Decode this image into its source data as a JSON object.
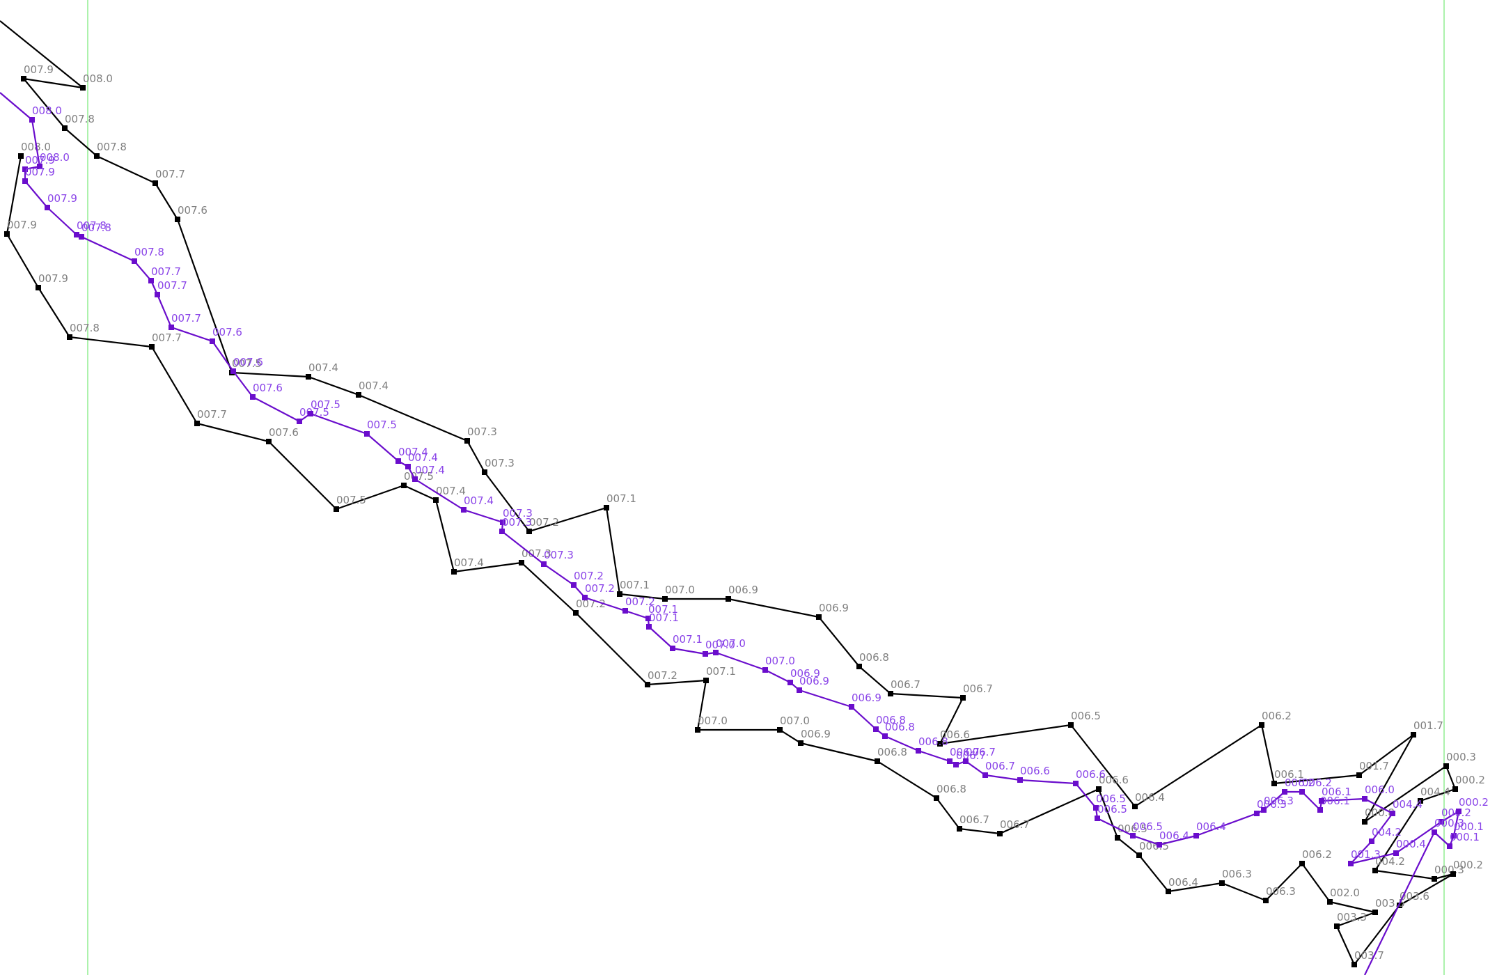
{
  "chart_data": {
    "type": "line",
    "title": "",
    "xlabel": "",
    "ylabel": "",
    "grid": false,
    "legend": "none",
    "colors": {
      "series_black": "#000000",
      "series_purple": "#6a0dcc",
      "label_black": "#808080",
      "label_purple": "#8a44e8",
      "guide": "#90ee90"
    },
    "guides": [
      "guide-left",
      "guide-right"
    ],
    "series": [
      {
        "key": "black",
        "points": [
          [
            0,
            30,
            ""
          ],
          [
            119,
            126,
            "008.0"
          ],
          [
            34,
            113,
            "007.9"
          ],
          [
            93,
            184,
            "007.8"
          ],
          [
            139,
            224,
            "007.8"
          ],
          [
            223,
            263,
            "007.7"
          ],
          [
            255,
            315,
            "007.6"
          ],
          [
            333,
            535,
            "007.5"
          ],
          [
            443,
            541,
            "007.4"
          ],
          [
            515,
            567,
            "007.4"
          ],
          [
            671,
            633,
            "007.3"
          ],
          [
            696,
            678,
            "007.3"
          ],
          [
            760,
            763,
            "007.2"
          ],
          [
            871,
            729,
            "007.1"
          ],
          [
            890,
            853,
            "007.1"
          ],
          [
            955,
            860,
            "007.0"
          ],
          [
            1046,
            860,
            "006.9"
          ],
          [
            1176,
            886,
            "006.9"
          ],
          [
            1234,
            957,
            "006.8"
          ],
          [
            1279,
            996,
            "006.7"
          ],
          [
            1383,
            1002,
            "006.7"
          ],
          [
            1350,
            1068,
            "006.6"
          ],
          [
            1538,
            1041,
            "006.5"
          ],
          [
            1630,
            1158,
            "006.4"
          ],
          [
            1812,
            1041,
            "006.2"
          ],
          [
            1830,
            1125,
            "006.1"
          ],
          [
            1952,
            1113,
            "001.7"
          ],
          [
            2030,
            1055,
            "001.7"
          ],
          [
            1960,
            1180,
            "000.8"
          ],
          [
            2077,
            1100,
            "000.3"
          ],
          [
            2090,
            1133,
            "000.2"
          ],
          [
            2040,
            1150,
            "004.4"
          ],
          [
            1975,
            1250,
            "004.2"
          ],
          [
            2060,
            1262,
            "000.3"
          ],
          [
            2087,
            1255,
            "000.2"
          ],
          [
            2010,
            1300,
            "003.6"
          ],
          [
            1945,
            1385,
            "003.7"
          ],
          [
            1920,
            1330,
            "003.3"
          ],
          [
            1975,
            1310,
            "003.5"
          ],
          [
            1910,
            1295,
            "002.0"
          ],
          [
            1870,
            1240,
            "006.2"
          ],
          [
            1818,
            1293,
            "006.3"
          ],
          [
            1755,
            1268,
            "006.3"
          ],
          [
            1678,
            1280,
            "006.4"
          ],
          [
            1636,
            1228,
            "006.5"
          ],
          [
            1605,
            1203,
            "006.5"
          ],
          [
            1578,
            1133,
            "006.6"
          ],
          [
            1436,
            1197,
            "006.7"
          ],
          [
            1378,
            1190,
            "006.7"
          ],
          [
            1345,
            1146,
            "006.8"
          ],
          [
            1260,
            1093,
            "006.8"
          ],
          [
            1150,
            1067,
            "006.9"
          ],
          [
            1120,
            1048,
            "007.0"
          ],
          [
            1002,
            1048,
            "007.0"
          ],
          [
            1014,
            977,
            "007.1"
          ],
          [
            930,
            983,
            "007.2"
          ],
          [
            827,
            880,
            "007.2"
          ],
          [
            749,
            808,
            "007.3"
          ],
          [
            652,
            821,
            "007.4"
          ],
          [
            626,
            718,
            "007.4"
          ],
          [
            580,
            697,
            "007.5"
          ],
          [
            483,
            731,
            "007.5"
          ],
          [
            386,
            634,
            "007.6"
          ],
          [
            283,
            608,
            "007.7"
          ],
          [
            218,
            498,
            "007.7"
          ],
          [
            100,
            484,
            "007.8"
          ],
          [
            55,
            413,
            "007.9"
          ],
          [
            10,
            336,
            "007.9"
          ],
          [
            30,
            224,
            "008.0"
          ]
        ]
      },
      {
        "key": "purple",
        "points": [
          [
            0,
            133,
            "008.0"
          ],
          [
            46,
            172,
            "008.0"
          ],
          [
            57,
            239,
            "008.0"
          ],
          [
            36,
            243,
            "007.9"
          ],
          [
            36,
            260,
            "007.9"
          ],
          [
            68,
            298,
            "007.9"
          ],
          [
            110,
            337,
            "007.8"
          ],
          [
            117,
            340,
            "007.8"
          ],
          [
            193,
            375,
            "007.8"
          ],
          [
            217,
            403,
            "007.7"
          ],
          [
            226,
            423,
            "007.7"
          ],
          [
            246,
            470,
            "007.7"
          ],
          [
            305,
            490,
            "007.6"
          ],
          [
            335,
            533,
            "007.6"
          ],
          [
            363,
            570,
            "007.6"
          ],
          [
            430,
            605,
            "007.5"
          ],
          [
            446,
            594,
            "007.5"
          ],
          [
            527,
            623,
            "007.5"
          ],
          [
            572,
            662,
            "007.4"
          ],
          [
            586,
            670,
            "007.4"
          ],
          [
            596,
            688,
            "007.4"
          ],
          [
            666,
            732,
            "007.4"
          ],
          [
            722,
            750,
            "007.3"
          ],
          [
            721,
            763,
            "007.3"
          ],
          [
            781,
            810,
            "007.3"
          ],
          [
            824,
            840,
            "007.2"
          ],
          [
            840,
            858,
            "007.2"
          ],
          [
            898,
            877,
            "007.2"
          ],
          [
            931,
            888,
            "007.1"
          ],
          [
            932,
            900,
            "007.1"
          ],
          [
            966,
            931,
            "007.1"
          ],
          [
            1013,
            939,
            "007.0"
          ],
          [
            1028,
            937,
            "007.0"
          ],
          [
            1099,
            962,
            "007.0"
          ],
          [
            1135,
            980,
            "006.9"
          ],
          [
            1148,
            991,
            "006.9"
          ],
          [
            1223,
            1015,
            "006.9"
          ],
          [
            1258,
            1047,
            "006.8"
          ],
          [
            1271,
            1057,
            "006.8"
          ],
          [
            1319,
            1078,
            "006.8"
          ],
          [
            1364,
            1093,
            "006.7"
          ],
          [
            1373,
            1098,
            "006.7"
          ],
          [
            1387,
            1093,
            "006.7"
          ],
          [
            1415,
            1113,
            "006.7"
          ],
          [
            1465,
            1120,
            "006.6"
          ],
          [
            1545,
            1125,
            "006.6"
          ],
          [
            1574,
            1160,
            "006.5"
          ],
          [
            1576,
            1175,
            "006.5"
          ],
          [
            1627,
            1200,
            "006.5"
          ],
          [
            1665,
            1213,
            "006.4"
          ],
          [
            1718,
            1200,
            "006.4"
          ],
          [
            1805,
            1168,
            "006.3"
          ],
          [
            1815,
            1163,
            "006.3"
          ],
          [
            1845,
            1137,
            "006.2"
          ],
          [
            1870,
            1137,
            "006.2"
          ],
          [
            1896,
            1163,
            "006.1"
          ],
          [
            1898,
            1150,
            "006.1"
          ],
          [
            1960,
            1147,
            "006.0"
          ],
          [
            2000,
            1168,
            "004.4"
          ],
          [
            1970,
            1208,
            "004.2"
          ],
          [
            1940,
            1240,
            "001.3"
          ],
          [
            2005,
            1225,
            "000.4"
          ],
          [
            2070,
            1180,
            "000.2"
          ],
          [
            2095,
            1165,
            "000.2"
          ],
          [
            2088,
            1200,
            "000.1"
          ],
          [
            2082,
            1215,
            "000.1"
          ],
          [
            2060,
            1195,
            "000.3"
          ],
          [
            1960,
            1400,
            ""
          ]
        ]
      }
    ]
  }
}
